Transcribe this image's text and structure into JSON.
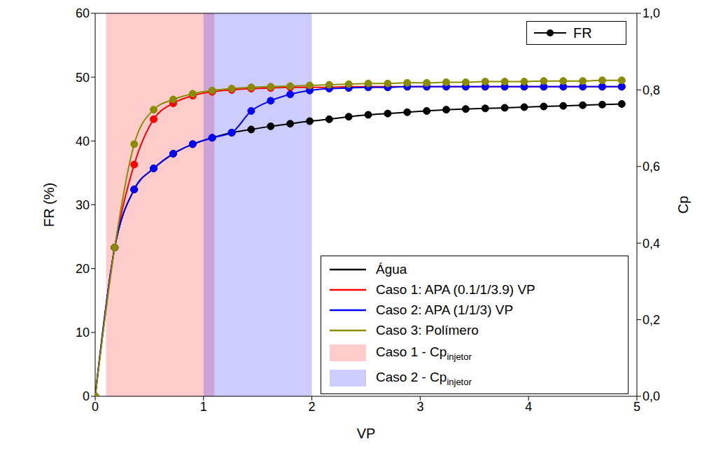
{
  "chart_data": {
    "type": "line",
    "xlabel": "VP",
    "ylabel": "FR (%)",
    "y2label": "Cp",
    "x": [
      0,
      0.18,
      0.36,
      0.54,
      0.72,
      0.9,
      1.08,
      1.26,
      1.44,
      1.62,
      1.8,
      1.98,
      2.16,
      2.34,
      2.52,
      2.7,
      2.88,
      3.06,
      3.24,
      3.42,
      3.6,
      3.78,
      3.96,
      4.14,
      4.32,
      4.5,
      4.68,
      4.86
    ],
    "xlim": [
      0,
      5
    ],
    "xticks": [
      0,
      1,
      2,
      3,
      4,
      5
    ],
    "ylim": [
      0,
      60
    ],
    "yticks": [
      0,
      10,
      20,
      30,
      40,
      50,
      60
    ],
    "y2lim": [
      0,
      1
    ],
    "y2ticks": [
      {
        "value": 0,
        "label": "0,0"
      },
      {
        "value": 0.2,
        "label": "0,2"
      },
      {
        "value": 0.4,
        "label": "0,4"
      },
      {
        "value": 0.6,
        "label": "0,6"
      },
      {
        "value": 0.8,
        "label": "0,8"
      },
      {
        "value": 1,
        "label": "1,0"
      }
    ],
    "grid": false,
    "legend": "lower right",
    "marker": "circle",
    "series": [
      {
        "name": "Água",
        "color": "#000000",
        "values": [
          0,
          23.3,
          32.4,
          35.7,
          38.0,
          39.5,
          40.5,
          41.3,
          41.8,
          42.3,
          42.7,
          43.1,
          43.4,
          43.8,
          44.1,
          44.3,
          44.5,
          44.7,
          44.9,
          45.0,
          45.1,
          45.2,
          45.3,
          45.4,
          45.5,
          45.6,
          45.7,
          45.8
        ]
      },
      {
        "name": "Caso 1: APA (0.1/1/3.9) VP",
        "color": "#ff0000",
        "values": [
          0,
          23.3,
          36.3,
          43.4,
          45.9,
          47.1,
          47.7,
          48.0,
          48.2,
          48.3,
          48.4,
          48.4,
          48.4,
          48.5,
          48.5,
          48.5,
          48.5,
          48.5,
          48.5,
          48.5,
          48.5,
          48.5,
          48.5,
          48.5,
          48.5,
          48.5,
          48.5,
          48.5
        ]
      },
      {
        "name": "Caso 2: APA (1/1/3) VP",
        "color": "#0000ff",
        "values": [
          0,
          23.3,
          32.4,
          35.7,
          38.0,
          39.5,
          40.5,
          41.3,
          44.7,
          46.3,
          47.3,
          47.9,
          48.2,
          48.3,
          48.4,
          48.4,
          48.5,
          48.5,
          48.5,
          48.5,
          48.5,
          48.5,
          48.5,
          48.5,
          48.5,
          48.5,
          48.5,
          48.5
        ]
      },
      {
        "name": "Caso 3: Polímero",
        "color": "#8b8b00",
        "values": [
          0,
          23.3,
          39.5,
          44.9,
          46.5,
          47.4,
          47.9,
          48.2,
          48.4,
          48.5,
          48.6,
          48.7,
          48.8,
          48.9,
          49.0,
          49.0,
          49.1,
          49.1,
          49.2,
          49.2,
          49.3,
          49.3,
          49.3,
          49.4,
          49.4,
          49.4,
          49.5,
          49.5
        ]
      }
    ],
    "shaded_regions": [
      {
        "name": "Caso 1 - Cp",
        "subscript": "injetor",
        "color": "#ff0000",
        "x": [
          0.1,
          1.1
        ]
      },
      {
        "name": "Caso 2 - Cp",
        "subscript": "injetor",
        "color": "#0000ff",
        "x": [
          1.0,
          2.0
        ]
      }
    ],
    "fr_legend": {
      "label": "FR",
      "color": "#000000",
      "marker": "circle"
    }
  }
}
